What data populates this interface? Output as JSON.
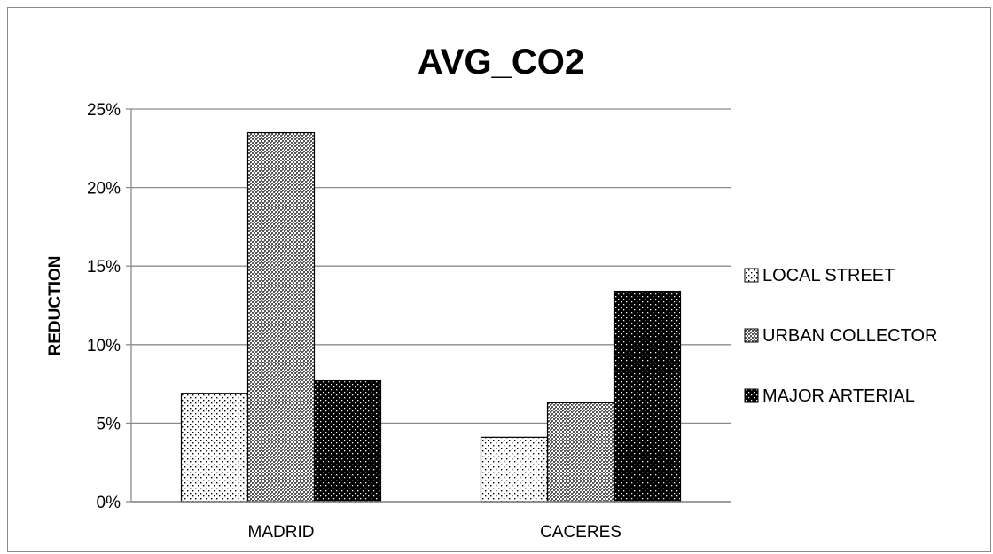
{
  "chart_data": {
    "type": "bar",
    "title": "AVG_CO2",
    "xlabel": "",
    "ylabel": "REDUCTION",
    "categories": [
      "MADRID",
      "CACERES"
    ],
    "series": [
      {
        "name": "LOCAL STREET",
        "values": [
          6.9,
          4.1
        ],
        "pattern": "light-dots",
        "color": "#ffffff"
      },
      {
        "name": "URBAN COLLECTOR",
        "values": [
          23.5,
          6.3
        ],
        "pattern": "crosshatch",
        "color": "#8c8c8c"
      },
      {
        "name": "MAJOR ARTERIAL",
        "values": [
          7.7,
          13.4
        ],
        "pattern": "dark-dots",
        "color": "#000000"
      }
    ],
    "ylim": [
      0,
      25
    ],
    "yticks": [
      "0%",
      "5%",
      "10%",
      "15%",
      "20%",
      "25%"
    ],
    "ytick_values": [
      0,
      5,
      10,
      15,
      20,
      25
    ],
    "grid": true,
    "legend_position": "right"
  }
}
